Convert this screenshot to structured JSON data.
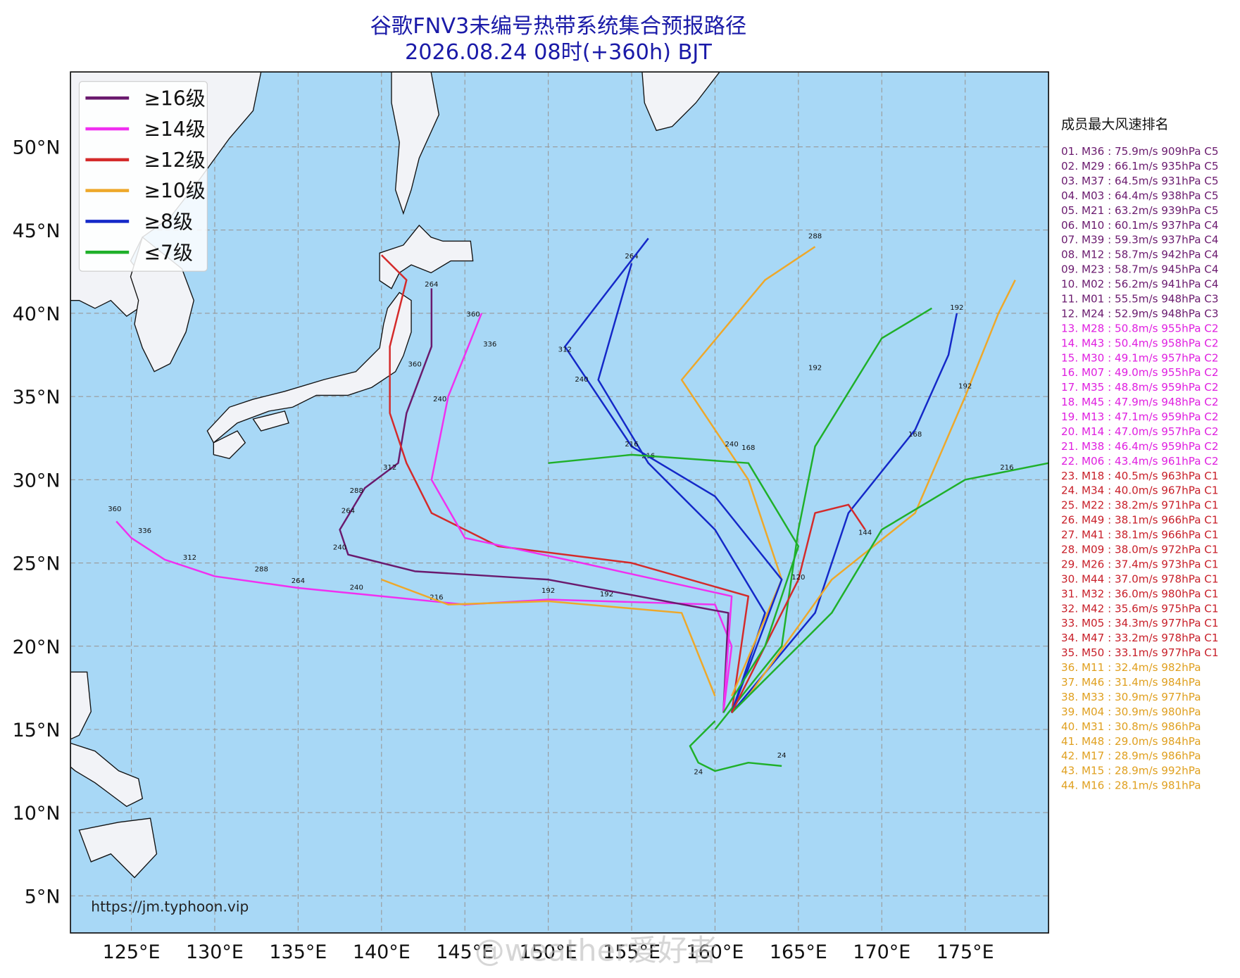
{
  "header": {
    "title": "谷歌FNV3未编号热带系统集合预报路径",
    "subtitle": "2026.08.24 08时(+360h) BJT"
  },
  "legend": [
    {
      "label": "≥16级",
      "color": "#6a1a6e"
    },
    {
      "label": "≥14级",
      "color": "#f030f0"
    },
    {
      "label": "≥12级",
      "color": "#d42a2a"
    },
    {
      "label": "≥10级",
      "color": "#eea82a"
    },
    {
      "label": "≥8级",
      "color": "#1428c8"
    },
    {
      "label": "≤7级",
      "color": "#1fb02a"
    }
  ],
  "map": {
    "lonlim": [
      121.35,
      180
    ],
    "latlim": [
      2.77,
      54.5
    ],
    "lonticks": [
      {
        "value": 125,
        "label": "125°E"
      },
      {
        "value": 130,
        "label": "130°E"
      },
      {
        "value": 135,
        "label": "135°E"
      },
      {
        "value": 140,
        "label": "140°E"
      },
      {
        "value": 145,
        "label": "145°E"
      },
      {
        "value": 150,
        "label": "150°E"
      },
      {
        "value": 155,
        "label": "155°E"
      },
      {
        "value": 160,
        "label": "160°E"
      },
      {
        "value": 165,
        "label": "165°E"
      },
      {
        "value": 170,
        "label": "170°E"
      },
      {
        "value": 175,
        "label": "175°E"
      }
    ],
    "latticks": [
      {
        "value": 5,
        "label": "5°N"
      },
      {
        "value": 10,
        "label": "10°N"
      },
      {
        "value": 15,
        "label": "15°N"
      },
      {
        "value": 20,
        "label": "20°N"
      },
      {
        "value": 25,
        "label": "25°N"
      },
      {
        "value": 30,
        "label": "30°N"
      },
      {
        "value": 35,
        "label": "35°N"
      },
      {
        "value": 40,
        "label": "40°N"
      },
      {
        "value": 45,
        "label": "45°N"
      },
      {
        "value": 50,
        "label": "50°N"
      }
    ],
    "tracks": [
      {
        "color": "#f030f0",
        "lon": [
          160.5,
          161,
          160,
          150,
          145,
          140,
          135,
          130,
          127,
          125,
          124.1
        ],
        "lat": [
          16,
          20,
          22.5,
          22.8,
          22.5,
          23,
          23.5,
          24.2,
          25.2,
          26.5,
          27.5
        ],
        "labels": [
          {
            "text": "360",
            "lon": 124,
            "lat": 28.1
          },
          {
            "text": "336",
            "lon": 125.8,
            "lat": 26.8
          },
          {
            "text": "312",
            "lon": 128.5,
            "lat": 25.2
          },
          {
            "text": "288",
            "lon": 132.8,
            "lat": 24.5
          },
          {
            "text": "264",
            "lon": 135,
            "lat": 23.8
          },
          {
            "text": "240",
            "lon": 138.5,
            "lat": 23.4
          },
          {
            "text": "216",
            "lon": 143.3,
            "lat": 22.8
          },
          {
            "text": "192",
            "lon": 153.5,
            "lat": 23
          }
        ]
      },
      {
        "color": "#6a1a6e",
        "lon": [
          160.5,
          160.8,
          150,
          142,
          138,
          137.5,
          139,
          141,
          141.5,
          143,
          143
        ],
        "lat": [
          16,
          22,
          24,
          24.5,
          25.5,
          27,
          29.5,
          31,
          34,
          38,
          41.5
        ],
        "labels": [
          {
            "text": "240",
            "lon": 137.5,
            "lat": 25.8
          },
          {
            "text": "264",
            "lon": 138,
            "lat": 28
          },
          {
            "text": "288",
            "lon": 138.5,
            "lat": 29.2
          }
        ]
      },
      {
        "color": "#d42a2a",
        "lon": [
          161,
          162,
          155,
          147,
          143,
          141.5,
          140.5,
          140.5,
          141.5,
          140
        ],
        "lat": [
          16,
          23,
          25,
          26,
          28,
          31,
          34,
          38,
          42,
          43.5
        ],
        "labels": [
          {
            "text": "312",
            "lon": 140.5,
            "lat": 30.6
          },
          {
            "text": "360",
            "lon": 142,
            "lat": 36.8
          },
          {
            "text": "264",
            "lon": 143,
            "lat": 41.6
          }
        ]
      },
      {
        "color": "#1428c8",
        "lon": [
          161,
          163,
          160,
          156,
          153,
          155
        ],
        "lat": [
          16,
          22,
          27,
          31,
          36,
          43
        ],
        "labels": [
          {
            "text": "264",
            "lon": 155,
            "lat": 43.3
          },
          {
            "text": "216",
            "lon": 156,
            "lat": 31.3
          }
        ]
      },
      {
        "color": "#eea82a",
        "lon": [
          161,
          164,
          162,
          158,
          163,
          166
        ],
        "lat": [
          17,
          24,
          30,
          36,
          42,
          44
        ],
        "labels": [
          {
            "text": "288",
            "lon": 166,
            "lat": 44.5
          },
          {
            "text": "240",
            "lon": 161,
            "lat": 32
          }
        ]
      },
      {
        "color": "#1fb02a",
        "lon": [
          160,
          164,
          165,
          166,
          170,
          173
        ],
        "lat": [
          15,
          20,
          27,
          32,
          38.5,
          40.3
        ],
        "labels": [
          {
            "text": "192",
            "lon": 166,
            "lat": 36.6
          }
        ]
      },
      {
        "color": "#1428c8",
        "lon": [
          161,
          166,
          168,
          172,
          174,
          174.5
        ],
        "lat": [
          16,
          22,
          28,
          33,
          37.5,
          40
        ],
        "labels": [
          {
            "text": "192",
            "lon": 174.5,
            "lat": 40.2
          },
          {
            "text": "168",
            "lon": 172,
            "lat": 32.6
          }
        ]
      },
      {
        "color": "#eea82a",
        "lon": [
          162,
          167,
          172,
          175,
          177,
          178
        ],
        "lat": [
          17,
          24,
          28,
          35,
          40,
          42
        ],
        "labels": [
          {
            "text": "192",
            "lon": 175,
            "lat": 35.5
          }
        ]
      },
      {
        "color": "#1fb02a",
        "lon": [
          161,
          167,
          170,
          175,
          180
        ],
        "lat": [
          16,
          22,
          27,
          30,
          31
        ],
        "labels": [
          {
            "text": "216",
            "lon": 177.5,
            "lat": 30.6
          }
        ]
      },
      {
        "color": "#f030f0",
        "lon": [
          160.5,
          161,
          152,
          145,
          143,
          144,
          146
        ],
        "lat": [
          16,
          23,
          25,
          26.5,
          30,
          35,
          40
        ],
        "labels": [
          {
            "text": "360",
            "lon": 145.5,
            "lat": 39.8
          },
          {
            "text": "336",
            "lon": 146.5,
            "lat": 38
          },
          {
            "text": "240",
            "lon": 143.5,
            "lat": 34.7
          }
        ]
      },
      {
        "color": "#1428c8",
        "lon": [
          161,
          164,
          160,
          155,
          151,
          156
        ],
        "lat": [
          16,
          24,
          29,
          32,
          38,
          44.5
        ],
        "labels": [
          {
            "text": "312",
            "lon": 151,
            "lat": 37.7
          },
          {
            "text": "240",
            "lon": 152,
            "lat": 35.9
          }
        ]
      },
      {
        "color": "#1fb02a",
        "lon": [
          160,
          158.5,
          159,
          160,
          162,
          164
        ],
        "lat": [
          15.5,
          14,
          13,
          12.5,
          13,
          12.8
        ],
        "labels": [
          {
            "text": "24",
            "lon": 159,
            "lat": 12.3
          },
          {
            "text": "24",
            "lon": 164,
            "lat": 13.3
          }
        ]
      },
      {
        "color": "#d42a2a",
        "lon": [
          161,
          165,
          166,
          168,
          169
        ],
        "lat": [
          16,
          24,
          28,
          28.5,
          27
        ],
        "labels": [
          {
            "text": "144",
            "lon": 169,
            "lat": 26.7
          },
          {
            "text": "120",
            "lon": 165,
            "lat": 24
          }
        ]
      },
      {
        "color": "#eea82a",
        "lon": [
          160,
          158,
          150,
          144,
          140
        ],
        "lat": [
          17,
          22,
          22.7,
          22.5,
          24
        ],
        "labels": [
          {
            "text": "192",
            "lon": 150,
            "lat": 23.2
          }
        ]
      },
      {
        "color": "#1fb02a",
        "lon": [
          160.5,
          163,
          165,
          162,
          155,
          150
        ],
        "lat": [
          16,
          20,
          26,
          31,
          31.5,
          31
        ],
        "labels": [
          {
            "text": "216",
            "lon": 155,
            "lat": 32
          },
          {
            "text": "168",
            "lon": 162,
            "lat": 31.8
          }
        ]
      }
    ]
  },
  "ranking": {
    "title": "成员最大风速排名",
    "items": [
      {
        "text": "01. M36 : 75.9m/s 909hPa C5",
        "color": "#6a1a6e"
      },
      {
        "text": "02. M29 : 66.1m/s 935hPa C5",
        "color": "#6a1a6e"
      },
      {
        "text": "03. M37 : 64.5m/s 931hPa C5",
        "color": "#6a1a6e"
      },
      {
        "text": "04. M03 : 64.4m/s 938hPa C5",
        "color": "#6a1a6e"
      },
      {
        "text": "05. M21 : 63.2m/s 939hPa C5",
        "color": "#6a1a6e"
      },
      {
        "text": "06. M10 : 60.1m/s 937hPa C4",
        "color": "#6a1a6e"
      },
      {
        "text": "07. M39 : 59.3m/s 937hPa C4",
        "color": "#6a1a6e"
      },
      {
        "text": "08. M12 : 58.7m/s 942hPa C4",
        "color": "#6a1a6e"
      },
      {
        "text": "09. M23 : 58.7m/s 945hPa C4",
        "color": "#6a1a6e"
      },
      {
        "text": "10. M02 : 56.2m/s 941hPa C4",
        "color": "#6a1a6e"
      },
      {
        "text": "11. M01 : 55.5m/s 948hPa C3",
        "color": "#6a1a6e"
      },
      {
        "text": "12. M24 : 52.9m/s 948hPa C3",
        "color": "#6a1a6e"
      },
      {
        "text": "13. M28 : 50.8m/s 955hPa C2",
        "color": "#e020e0"
      },
      {
        "text": "14. M43 : 50.4m/s 958hPa C2",
        "color": "#e020e0"
      },
      {
        "text": "15. M30 : 49.1m/s 957hPa C2",
        "color": "#e020e0"
      },
      {
        "text": "16. M07 : 49.0m/s 955hPa C2",
        "color": "#e020e0"
      },
      {
        "text": "17. M35 : 48.8m/s 959hPa C2",
        "color": "#e020e0"
      },
      {
        "text": "18. M45 : 47.9m/s 948hPa C2",
        "color": "#e020e0"
      },
      {
        "text": "19. M13 : 47.1m/s 959hPa C2",
        "color": "#e020e0"
      },
      {
        "text": "20. M14 : 47.0m/s 957hPa C2",
        "color": "#e020e0"
      },
      {
        "text": "21. M38 : 46.4m/s 959hPa C2",
        "color": "#e020e0"
      },
      {
        "text": "22. M06 : 43.4m/s 961hPa C2",
        "color": "#e020e0"
      },
      {
        "text": "23. M18 : 40.5m/s 963hPa C1",
        "color": "#c8202a"
      },
      {
        "text": "24. M34 : 40.0m/s 967hPa C1",
        "color": "#c8202a"
      },
      {
        "text": "25. M22 : 38.2m/s 971hPa C1",
        "color": "#c8202a"
      },
      {
        "text": "26. M49 : 38.1m/s 966hPa C1",
        "color": "#c8202a"
      },
      {
        "text": "27. M41 : 38.1m/s 966hPa C1",
        "color": "#c8202a"
      },
      {
        "text": "28. M09 : 38.0m/s 972hPa C1",
        "color": "#c8202a"
      },
      {
        "text": "29. M26 : 37.4m/s 973hPa C1",
        "color": "#c8202a"
      },
      {
        "text": "30. M44 : 37.0m/s 978hPa C1",
        "color": "#c8202a"
      },
      {
        "text": "31. M32 : 36.0m/s 980hPa C1",
        "color": "#c8202a"
      },
      {
        "text": "32. M42 : 35.6m/s 975hPa C1",
        "color": "#c8202a"
      },
      {
        "text": "33. M05 : 34.3m/s 977hPa C1",
        "color": "#c8202a"
      },
      {
        "text": "34. M47 : 33.2m/s 978hPa C1",
        "color": "#c8202a"
      },
      {
        "text": "35. M50 : 33.1m/s 977hPa C1",
        "color": "#c8202a"
      },
      {
        "text": "36. M11 : 32.4m/s 982hPa",
        "color": "#e0a020"
      },
      {
        "text": "37. M46 : 31.4m/s 984hPa",
        "color": "#e0a020"
      },
      {
        "text": "38. M33 : 30.9m/s 977hPa",
        "color": "#e0a020"
      },
      {
        "text": "39. M04 : 30.9m/s 980hPa",
        "color": "#e0a020"
      },
      {
        "text": "40. M31 : 30.8m/s 986hPa",
        "color": "#e0a020"
      },
      {
        "text": "41. M48 : 29.0m/s 984hPa",
        "color": "#e0a020"
      },
      {
        "text": "42. M17 : 28.9m/s 986hPa",
        "color": "#e0a020"
      },
      {
        "text": "43. M15 : 28.9m/s 992hPa",
        "color": "#e0a020"
      },
      {
        "text": "44. M16 : 28.1m/s 981hPa",
        "color": "#e0a020"
      }
    ]
  },
  "footer": {
    "source": "https://jm.typhoon.vip",
    "watermark": "@weather爱好者"
  }
}
